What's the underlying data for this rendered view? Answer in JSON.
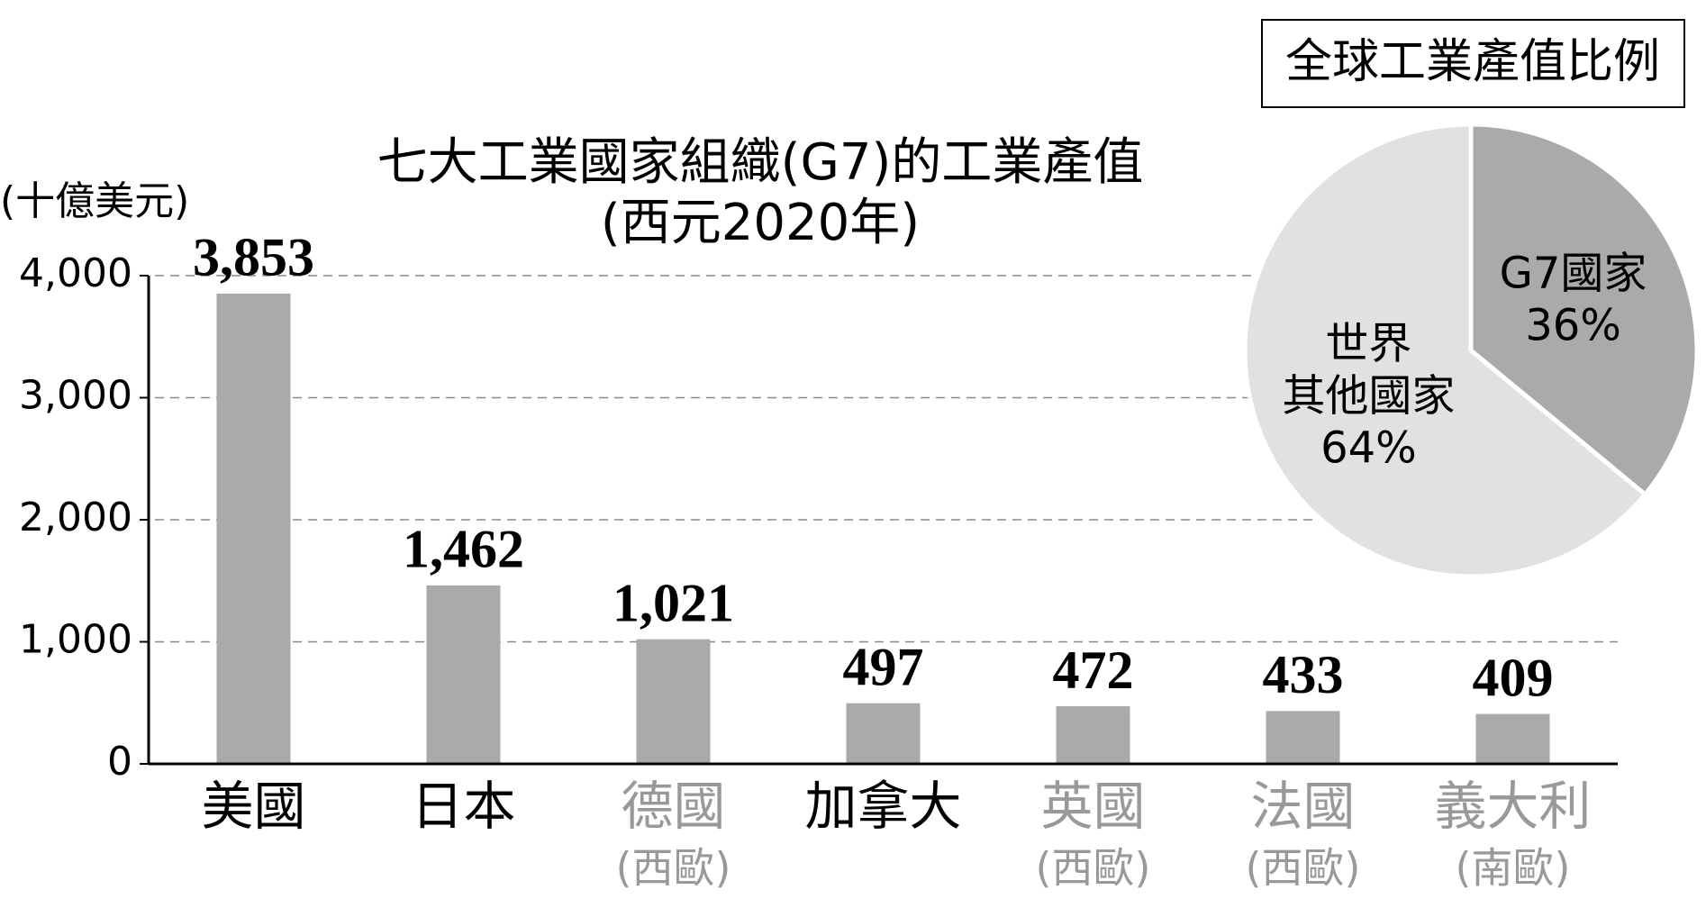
{
  "chart_data": [
    {
      "type": "bar",
      "title": "七大工業國家組織(G7)的工業產值",
      "subtitle": "(西元2020年)",
      "y_label": "(十億美元)",
      "categories": [
        "美國",
        "日本",
        "德國",
        "加拿大",
        "英國",
        "法國",
        "義大利"
      ],
      "category_notes": [
        null,
        null,
        "(西歐)",
        null,
        "(西歐)",
        "(西歐)",
        "(南歐)"
      ],
      "category_colors": [
        "#000000",
        "#000000",
        "#999999",
        "#000000",
        "#999999",
        "#999999",
        "#999999"
      ],
      "values": [
        3853,
        1462,
        1021,
        497,
        472,
        433,
        409
      ],
      "value_labels": [
        "3,853",
        "1,462",
        "1,021",
        "497",
        "472",
        "433",
        "409"
      ],
      "color": "#aaaaaa",
      "ylim": [
        0,
        4000
      ],
      "yticks": [
        0,
        {
          "value": 1000,
          "label": "1,000"
        },
        {
          "value": 2000,
          "label": "2,000"
        },
        {
          "value": 3000,
          "label": "3,000"
        },
        {
          "value": 4000,
          "label": "4,000"
        }
      ],
      "grid": true
    },
    {
      "type": "pie",
      "title": "全球工業產值比例",
      "categories": [
        [
          "G7國家"
        ],
        [
          "世界",
          "其他國家"
        ]
      ],
      "values": [
        36,
        64
      ],
      "value_labels": [
        "36%",
        "64%"
      ],
      "colors": [
        "#aaaaaa",
        "#e1e1e1"
      ]
    }
  ]
}
